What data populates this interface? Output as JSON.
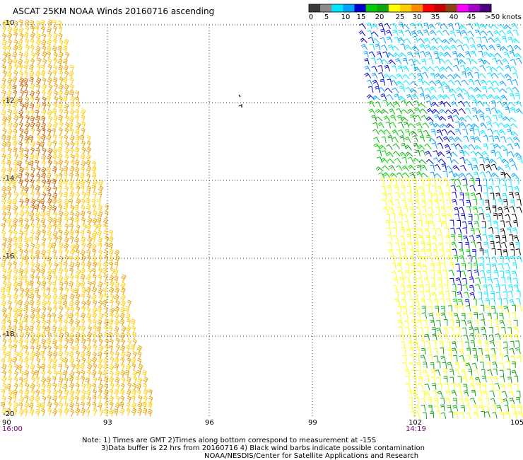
{
  "title": "ASCAT 25KM NOAA Winds 20160716 ascending",
  "legend": {
    "labels": [
      "0",
      "5",
      "10",
      "15",
      "20",
      "25",
      "30",
      "35",
      "40",
      "45",
      ">50 knots"
    ],
    "colors": [
      "#3a3a3a",
      "#8c8c8c",
      "#00e5ff",
      "#00a0ff",
      "#0000cc",
      "#00cc00",
      "#11a511",
      "#ffff00",
      "#ffcc00",
      "#ff8c00",
      "#ff0000",
      "#cc0000",
      "#8b4513",
      "#ff00ff",
      "#a000c8",
      "#4b0082"
    ]
  },
  "axes": {
    "y_labels": [
      "-10",
      "-12",
      "-14",
      "-16",
      "-18",
      "-20"
    ],
    "x_labels": [
      "90",
      "93",
      "96",
      "99",
      "102",
      "105"
    ]
  },
  "times": {
    "left": "16:00",
    "right": "14:19"
  },
  "notes": {
    "line1": "Note: 1) Times are GMT 2)Times along bottom correspond to measurement at -15S",
    "line2": "3)Data buffer is 22 hrs from 20160716 4) Black wind barbs indicate possible contamination",
    "line3": "NOAA/NESDIS/Center for Satellite Applications and Research"
  },
  "barb_colors": {
    "orange": "#e8a000",
    "dark_orange": "#cc6600",
    "gold": "#ffcc00",
    "yellow": "#ffff00",
    "green": "#00cc00",
    "dark_green": "#11a511",
    "blue": "#0000cc",
    "mid_blue": "#00a0ff",
    "cyan": "#00e5ff",
    "black": "#000000"
  }
}
